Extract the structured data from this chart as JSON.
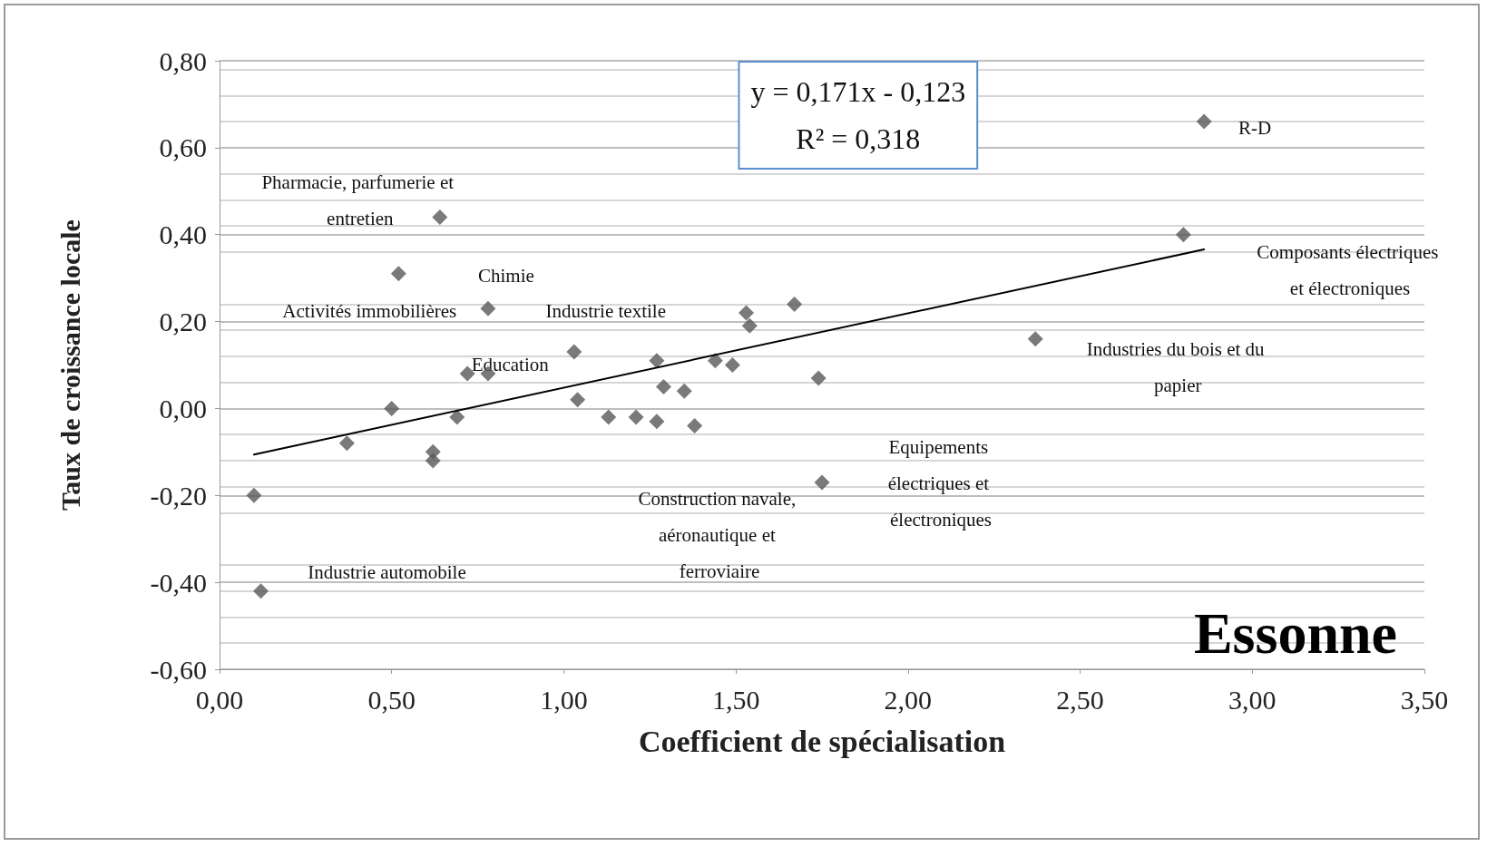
{
  "chart_data": {
    "type": "scatter",
    "title": "Essonne",
    "xlabel": "Coefficient de spécialisation",
    "ylabel": "Taux de croissance locale",
    "xlim": [
      0,
      3.5
    ],
    "xticks": [
      {
        "value": 0,
        "label": "0,00"
      },
      {
        "value": 0.5,
        "label": "0,50"
      },
      {
        "value": 1,
        "label": "1,00"
      },
      {
        "value": 1.5,
        "label": "1,50"
      },
      {
        "value": 2,
        "label": "2,00"
      },
      {
        "value": 2.5,
        "label": "2,50"
      },
      {
        "value": 3,
        "label": "3,00"
      },
      {
        "value": 3.5,
        "label": "3,50"
      }
    ],
    "ylim": [
      -0.6,
      0.8
    ],
    "yticks": [
      {
        "value": -0.6,
        "label": "-0,60"
      },
      {
        "value": -0.4,
        "label": "-0,40"
      },
      {
        "value": -0.2,
        "label": "-0,20"
      },
      {
        "value": 0,
        "label": "0,00"
      },
      {
        "value": 0.2,
        "label": "0,20"
      },
      {
        "value": 0.4,
        "label": "0,40"
      },
      {
        "value": 0.6,
        "label": "0,60"
      },
      {
        "value": 0.8,
        "label": "0,80"
      }
    ],
    "grid": "y",
    "marker": "diamond",
    "series": [
      {
        "color": "#595959",
        "x": [
          0.1,
          0.12,
          0.37,
          0.5,
          0.52,
          0.62,
          0.62,
          0.64,
          0.69,
          0.72,
          0.78,
          0.78,
          1.03,
          1.04,
          1.13,
          1.21,
          1.27,
          1.27,
          1.29,
          1.35,
          1.38,
          1.44,
          1.49,
          1.53,
          1.54,
          1.67,
          1.74,
          1.75,
          2.37,
          2.8,
          2.86
        ],
        "values": [
          -0.2,
          -0.42,
          -0.08,
          0.0,
          0.31,
          -0.1,
          -0.12,
          0.44,
          -0.02,
          0.08,
          0.08,
          0.23,
          0.13,
          0.02,
          -0.02,
          -0.02,
          0.11,
          -0.03,
          0.05,
          0.04,
          -0.04,
          0.11,
          0.1,
          0.22,
          0.19,
          0.24,
          0.07,
          -0.17,
          0.16,
          0.4,
          0.66
        ]
      },
      {
        "type": "line",
        "color": "#000000",
        "marker": "none",
        "line_style": "solid",
        "x": [
          0.1,
          2.86
        ],
        "values": [
          -0.106,
          0.366
        ]
      }
    ],
    "annotations": [
      {
        "text": "Pharmacie, parfumerie et entretien",
        "x": 0.64,
        "y": 0.44
      },
      {
        "text": "Activités immobilières",
        "x": 0.52,
        "y": 0.31
      },
      {
        "text": "Chimie",
        "x": 0.78,
        "y": 0.23
      },
      {
        "text": "Industrie textile",
        "x": 1.03,
        "y": 0.13
      },
      {
        "text": "Education",
        "x": 0.72,
        "y": 0.08
      },
      {
        "text": "Industrie automobile",
        "x": 0.12,
        "y": -0.42
      },
      "Construction navale, aéronautique et ferroviaire",
      "Equipements électriques et électroniques",
      {
        "text": "Industries du bois et du papier",
        "x": 2.37,
        "y": 0.16
      },
      "Composants électriques et électroniques",
      {
        "text": "R-D",
        "x": 2.86,
        "y": 0.66
      },
      "y = 0,171x - 0,123\nR² = 0,318"
    ]
  }
}
